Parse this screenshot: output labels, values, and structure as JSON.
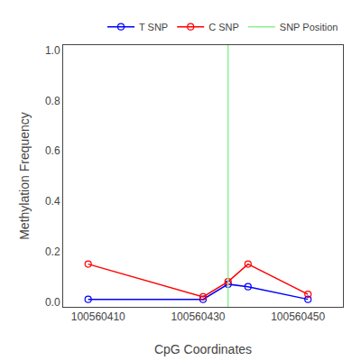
{
  "chart_data": {
    "type": "line",
    "xlabel": "CpG Coordinates",
    "ylabel": "Methylation Frequency",
    "series": [
      {
        "name": "T SNP",
        "color": "blue",
        "marker": "open_circle",
        "x": [
          100560408,
          100560431,
          100560436,
          100560440,
          100560452
        ],
        "values": [
          0.01,
          0.01,
          0.07,
          0.06,
          0.01
        ]
      },
      {
        "name": "C SNP",
        "color": "red",
        "marker": "open_circle",
        "x": [
          100560408,
          100560431,
          100560436,
          100560440,
          100560452
        ],
        "values": [
          0.15,
          0.02,
          0.08,
          0.15,
          0.03
        ]
      },
      {
        "name": "SNP Position",
        "color": "#90EE90",
        "type": "vline",
        "x": 100560436
      }
    ],
    "xlim": [
      100560403,
      100560459
    ],
    "ylim": [
      -0.02,
      1.02
    ],
    "xticks": [
      100560410,
      100560430,
      100560450
    ],
    "yticks": [
      {
        "value": 0.0,
        "label": "0.0"
      },
      0.2,
      0.4,
      0.6,
      0.8,
      {
        "value": 1.0,
        "label": "1.0"
      }
    ],
    "grid": false,
    "legend": "upper right"
  }
}
